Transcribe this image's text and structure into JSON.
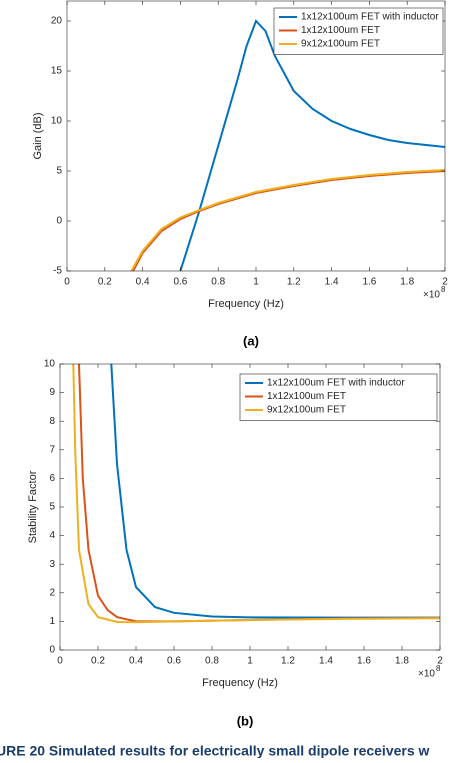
{
  "chart_data": [
    {
      "type": "line",
      "label": "(a)",
      "xlabel": "Frequency (Hz)",
      "ylabel": "Gain (dB)",
      "x_multiplier": "×10",
      "x_exponent": "8",
      "xlim": [
        0,
        2
      ],
      "xticks": [
        0,
        0.2,
        0.4,
        0.6,
        0.8,
        1,
        1.2,
        1.4,
        1.6,
        1.8,
        2
      ],
      "ylim": [
        -5,
        22
      ],
      "yticks": [
        -5,
        0,
        5,
        10,
        15,
        20
      ],
      "grid": false,
      "legend": "upper right",
      "series": [
        {
          "name": "1x12x100um FET with inductor",
          "color": "#0072BD",
          "x": [
            0.6,
            0.7,
            0.8,
            0.9,
            0.95,
            1.0,
            1.05,
            1.1,
            1.2,
            1.3,
            1.4,
            1.5,
            1.6,
            1.7,
            1.8,
            1.9,
            2.0
          ],
          "values": [
            -5,
            1,
            7.5,
            14,
            17.5,
            20,
            19,
            16.5,
            13,
            11.2,
            10,
            9.2,
            8.6,
            8.1,
            7.8,
            7.6,
            7.4
          ]
        },
        {
          "name": "1x12x100um FET",
          "color": "#D95319",
          "x": [
            0.35,
            0.4,
            0.5,
            0.6,
            0.7,
            0.8,
            1.0,
            1.2,
            1.4,
            1.6,
            1.8,
            2.0
          ],
          "values": [
            -5,
            -3.2,
            -1.0,
            0.2,
            1.0,
            1.7,
            2.8,
            3.5,
            4.1,
            4.5,
            4.8,
            5.0
          ]
        },
        {
          "name": "9x12x100um FET",
          "color": "#EDB120",
          "x": [
            0.34,
            0.4,
            0.5,
            0.6,
            0.7,
            0.8,
            1.0,
            1.2,
            1.4,
            1.6,
            1.8,
            2.0
          ],
          "values": [
            -5,
            -3.0,
            -0.8,
            0.35,
            1.1,
            1.8,
            2.9,
            3.6,
            4.2,
            4.6,
            4.9,
            5.1
          ]
        }
      ]
    },
    {
      "type": "line",
      "label": "(b)",
      "xlabel": "Frequency (Hz)",
      "ylabel": "Stability Factor",
      "x_multiplier": "×10",
      "x_exponent": "8",
      "xlim": [
        0,
        2
      ],
      "xticks": [
        0,
        0.2,
        0.4,
        0.6,
        0.8,
        1,
        1.2,
        1.4,
        1.6,
        1.8,
        2
      ],
      "ylim": [
        0,
        10
      ],
      "yticks": [
        0,
        1,
        2,
        3,
        4,
        5,
        6,
        7,
        8,
        9,
        10
      ],
      "grid": false,
      "legend": "upper right",
      "series": [
        {
          "name": "1x12x100um FET with inductor",
          "color": "#0072BD",
          "x": [
            0.27,
            0.3,
            0.35,
            0.4,
            0.5,
            0.6,
            0.8,
            1.0,
            1.5,
            2.0
          ],
          "values": [
            10,
            6.5,
            3.5,
            2.2,
            1.5,
            1.3,
            1.17,
            1.14,
            1.13,
            1.13
          ]
        },
        {
          "name": "1x12x100um FET",
          "color": "#D95319",
          "x": [
            0.1,
            0.12,
            0.15,
            0.2,
            0.25,
            0.3,
            0.4,
            0.6,
            1.0,
            1.5,
            2.0
          ],
          "values": [
            10,
            6,
            3.5,
            1.9,
            1.4,
            1.15,
            1.0,
            1.0,
            1.05,
            1.1,
            1.12
          ]
        },
        {
          "name": "9x12x100um FET",
          "color": "#EDB120",
          "x": [
            0.07,
            0.08,
            0.1,
            0.15,
            0.2,
            0.3,
            0.4,
            0.6,
            1.0,
            1.5,
            2.0
          ],
          "values": [
            10,
            7,
            3.5,
            1.6,
            1.15,
            0.98,
            0.97,
            1.0,
            1.05,
            1.09,
            1.11
          ]
        }
      ]
    }
  ],
  "caption": "URE 20   Simulated results for electrically small dipole receivers w"
}
